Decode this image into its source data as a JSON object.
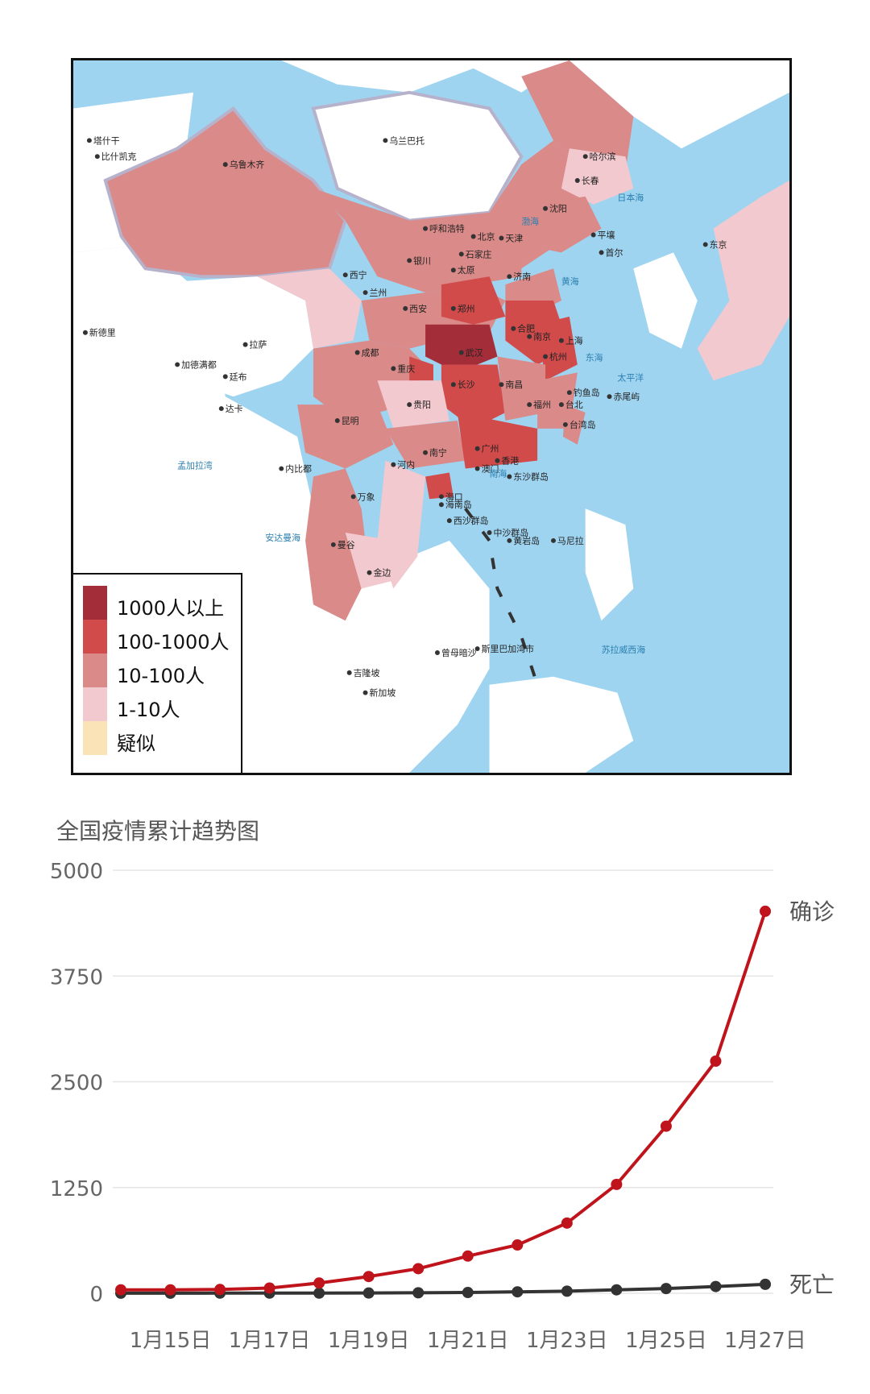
{
  "map": {
    "legend": [
      {
        "label": "1000人以上",
        "color": "#a32e3a"
      },
      {
        "label": "100-1000人",
        "color": "#d14b4b"
      },
      {
        "label": "10-100人",
        "color": "#d98a89"
      },
      {
        "label": "1-10人",
        "color": "#f2c9cf"
      },
      {
        "label": "疑似",
        "color": "#fbe3b8"
      }
    ],
    "cities": [
      {
        "name": "塔什干"
      },
      {
        "name": "比什凯克"
      },
      {
        "name": "乌兰巴托"
      },
      {
        "name": "乌鲁木齐"
      },
      {
        "name": "哈尔滨"
      },
      {
        "name": "长春"
      },
      {
        "name": "沈阳"
      },
      {
        "name": "呼和浩特"
      },
      {
        "name": "北京"
      },
      {
        "name": "天津"
      },
      {
        "name": "平壤"
      },
      {
        "name": "首尔"
      },
      {
        "name": "东京"
      },
      {
        "name": "石家庄"
      },
      {
        "name": "太原"
      },
      {
        "name": "银川"
      },
      {
        "name": "西宁"
      },
      {
        "name": "兰州"
      },
      {
        "name": "济南"
      },
      {
        "name": "郑州"
      },
      {
        "name": "西安"
      },
      {
        "name": "合肥"
      },
      {
        "name": "南京"
      },
      {
        "name": "上海"
      },
      {
        "name": "拉萨"
      },
      {
        "name": "成都"
      },
      {
        "name": "武汉"
      },
      {
        "name": "杭州"
      },
      {
        "name": "重庆"
      },
      {
        "name": "长沙"
      },
      {
        "name": "南昌"
      },
      {
        "name": "加德满都"
      },
      {
        "name": "廷布"
      },
      {
        "name": "新德里"
      },
      {
        "name": "贵阳"
      },
      {
        "name": "福州"
      },
      {
        "name": "台北"
      },
      {
        "name": "钓鱼岛"
      },
      {
        "name": "赤尾屿"
      },
      {
        "name": "台湾岛"
      },
      {
        "name": "达卡"
      },
      {
        "name": "昆明"
      },
      {
        "name": "南宁"
      },
      {
        "name": "广州"
      },
      {
        "name": "香港"
      },
      {
        "name": "澳门"
      },
      {
        "name": "内比都"
      },
      {
        "name": "河内"
      },
      {
        "name": "东沙群岛"
      },
      {
        "name": "万象"
      },
      {
        "name": "海口"
      },
      {
        "name": "海南岛"
      },
      {
        "name": "西沙群岛"
      },
      {
        "name": "中沙群岛"
      },
      {
        "name": "黄岩岛"
      },
      {
        "name": "马尼拉"
      },
      {
        "name": "曼谷"
      },
      {
        "name": "金边"
      },
      {
        "name": "斯里巴加湾市"
      },
      {
        "name": "曾母暗沙"
      },
      {
        "name": "吉隆坡"
      },
      {
        "name": "新加坡"
      }
    ],
    "seas": [
      "日本海",
      "渤海",
      "黄海",
      "东海",
      "太平洋",
      "南海",
      "孟加拉湾",
      "安达曼海",
      "苏拉威西海"
    ],
    "colors": {
      "sea": "#9fd4f0",
      "foreign": "#ffffff",
      "hubei": "#a32e3a",
      "high": "#d14b4b",
      "mid": "#d98a89",
      "low": "#f2c9cf"
    }
  },
  "chart": {
    "title": "全国疫情累计趋势图"
  },
  "chart_data": {
    "type": "line",
    "title": "全国疫情累计趋势图",
    "x": [
      "1月14日",
      "1月15日",
      "1月16日",
      "1月17日",
      "1月18日",
      "1月19日",
      "1月20日",
      "1月21日",
      "1月22日",
      "1月23日",
      "1月24日",
      "1月25日",
      "1月26日",
      "1月27日"
    ],
    "x_tick_labels": [
      "1月15日",
      "1月17日",
      "1月19日",
      "1月21日",
      "1月23日",
      "1月25日",
      "1月27日"
    ],
    "y_tick_labels": [
      "5000",
      "3750",
      "2500",
      "1250",
      "0"
    ],
    "ylim": [
      0,
      5000
    ],
    "series": [
      {
        "name": "确诊",
        "color": "#c0141c",
        "values": [
          41,
          41,
          45,
          62,
          121,
          198,
          291,
          440,
          571,
          830,
          1287,
          1975,
          2744,
          4515
        ]
      },
      {
        "name": "死亡",
        "color": "#333333",
        "values": [
          1,
          1,
          2,
          2,
          2,
          3,
          6,
          9,
          17,
          25,
          41,
          56,
          80,
          106
        ]
      }
    ],
    "grid": true
  }
}
